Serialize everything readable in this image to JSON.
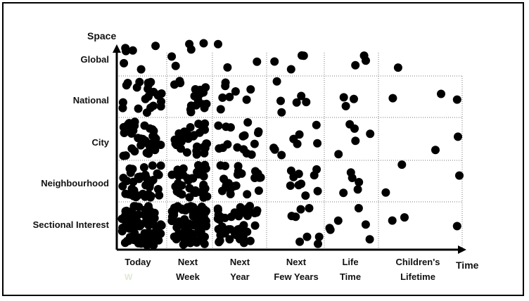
{
  "chart_data": {
    "type": "scatter",
    "title": "",
    "xlabel": "Time",
    "ylabel": "Space",
    "x_categories": [
      "Today",
      "Next Week",
      "Next Year",
      "Next Few Years",
      "Life Time",
      "Children's Lifetime"
    ],
    "x_category_lines": [
      [
        "Today",
        ""
      ],
      [
        "Next",
        "Week"
      ],
      [
        "Next",
        "Year"
      ],
      [
        "Next",
        "Few Years"
      ],
      [
        "Life",
        "Time"
      ],
      [
        "Children's",
        "Lifetime"
      ]
    ],
    "y_categories": [
      "Sectional Interest",
      "Neighbourhood",
      "City",
      "National",
      "Global"
    ],
    "grid": "dotted",
    "stray_mark": "W",
    "density_profile": [
      {
        "x_category": "Today",
        "point_counts_by_level": [
          85,
          40,
          35,
          22,
          6
        ]
      },
      {
        "x_category": "Next Week",
        "point_counts_by_level": [
          75,
          38,
          30,
          18,
          5
        ]
      },
      {
        "x_category": "Next Year",
        "point_counts_by_level": [
          45,
          22,
          16,
          8,
          3
        ]
      },
      {
        "x_category": "Next Few Years",
        "point_counts_by_level": [
          8,
          10,
          8,
          6,
          4
        ]
      },
      {
        "x_category": "Life Time",
        "point_counts_by_level": [
          6,
          5,
          5,
          3,
          3
        ]
      },
      {
        "x_category": "Children's Lifetime",
        "point_counts_by_level": [
          3,
          3,
          2,
          3,
          1
        ]
      }
    ]
  }
}
